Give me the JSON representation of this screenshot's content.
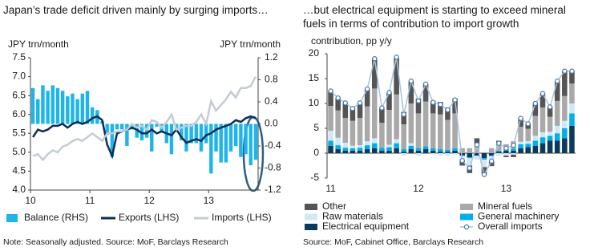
{
  "chart_data": [
    {
      "type": "combo",
      "title": "Japan’s trade deficit driven mainly by surging imports…",
      "y_label": "JPY trn/month",
      "y2_label": "JPY trn/month",
      "categories": [
        "10",
        null,
        null,
        null,
        null,
        null,
        null,
        null,
        null,
        null,
        null,
        null,
        "11",
        null,
        null,
        null,
        null,
        null,
        null,
        null,
        null,
        null,
        null,
        null,
        "12",
        null,
        null,
        null,
        null,
        null,
        null,
        null,
        null,
        null,
        null,
        null,
        "13",
        null,
        null,
        null,
        null,
        null,
        null,
        null,
        null,
        null
      ],
      "series": [
        {
          "name": "Balance (RHS)",
          "type": "bar",
          "axis": "y2",
          "color": "#1fb5ea",
          "values": [
            0.65,
            0.45,
            0.7,
            0.6,
            0.7,
            0.65,
            0.6,
            0.5,
            0.55,
            0.45,
            0.55,
            0.6,
            0.3,
            0.25,
            0.05,
            -0.2,
            -0.6,
            -0.1,
            -0.1,
            -0.4,
            -0.1,
            -0.25,
            -0.3,
            -0.25,
            -0.5,
            -0.05,
            -0.15,
            -0.35,
            -0.55,
            -0.1,
            -0.3,
            -0.5,
            -0.35,
            -0.35,
            -0.5,
            -0.35,
            -0.9,
            -0.5,
            -0.7,
            -0.7,
            -0.5,
            -0.4,
            -0.6,
            -0.55,
            -0.75,
            -0.65
          ]
        },
        {
          "name": "Exports (LHS)",
          "type": "line",
          "color": "#0d2f55",
          "values": [
            5.4,
            5.6,
            5.55,
            5.6,
            5.7,
            5.7,
            5.75,
            5.65,
            5.75,
            5.8,
            5.75,
            5.8,
            5.9,
            5.95,
            5.85,
            5.2,
            4.9,
            5.5,
            5.55,
            5.6,
            5.65,
            5.6,
            5.5,
            5.5,
            5.6,
            5.5,
            5.55,
            5.5,
            5.45,
            5.6,
            5.4,
            5.25,
            5.3,
            5.35,
            5.3,
            5.45,
            5.5,
            5.6,
            5.65,
            5.7,
            5.75,
            5.85,
            5.8,
            5.9,
            5.95,
            5.9
          ]
        },
        {
          "name": "Imports (LHS)",
          "type": "line",
          "color": "#c3ccd3",
          "values": [
            4.9,
            4.95,
            4.8,
            4.95,
            5.05,
            5.0,
            5.15,
            5.2,
            5.3,
            5.35,
            5.3,
            5.4,
            5.5,
            5.4,
            5.3,
            5.5,
            5.5,
            5.55,
            5.55,
            5.6,
            5.75,
            5.65,
            5.7,
            5.6,
            5.85,
            5.8,
            5.65,
            5.8,
            6.0,
            5.6,
            5.65,
            5.7,
            5.7,
            5.8,
            6.0,
            5.75,
            6.35,
            6.1,
            6.25,
            6.4,
            6.6,
            6.45,
            6.7,
            6.7,
            6.75,
            7.0
          ]
        }
      ],
      "ylim": [
        4.0,
        7.5
      ],
      "yticks": [
        {
          "value": 4.0,
          "label": "4.0"
        },
        {
          "value": 4.5,
          "label": "4.5"
        },
        {
          "value": 5.0,
          "label": "5.0"
        },
        {
          "value": 5.5,
          "label": "5.5"
        },
        {
          "value": 6.0,
          "label": "6.0"
        },
        {
          "value": 6.5,
          "label": "6.5"
        },
        {
          "value": 7.0,
          "label": "7.0"
        },
        {
          "value": 7.5,
          "label": "7.5"
        }
      ],
      "y2lim": [
        -1.2,
        1.2
      ],
      "y2ticks": [
        {
          "value": -1.2,
          "label": "-1.2"
        },
        {
          "value": -0.8,
          "label": "-0.8"
        },
        {
          "value": -0.4,
          "label": "-0.4"
        },
        {
          "value": 0,
          "label": "0.0"
        },
        {
          "value": 0.4,
          "label": "0.4"
        },
        {
          "value": 0.8,
          "label": "0.8"
        },
        {
          "value": 1.2,
          "label": "1.2"
        }
      ],
      "grid": false,
      "note": "Note: Seasonally adjusted. Source: MoF, Barclays Research"
    },
    {
      "type": "stacked_bar",
      "title": "…but electrical equipment is starting to exceed mineral fuels in terms of contribution to import growth",
      "y_label": "contribution, pp y/y",
      "categories": [
        "11",
        null,
        null,
        null,
        null,
        null,
        null,
        null,
        null,
        null,
        null,
        null,
        "12",
        null,
        null,
        null,
        null,
        null,
        null,
        null,
        null,
        null,
        null,
        null,
        "13",
        null,
        null,
        null,
        null,
        null,
        null,
        null,
        null,
        null
      ],
      "series": [
        {
          "name": "Electrical equipment",
          "type": "bar",
          "color": "#0b3a5c",
          "values": [
            1.5,
            0.8,
            0.5,
            0.5,
            0.5,
            0.8,
            1,
            0.5,
            0.5,
            1,
            0.3,
            0.8,
            0.5,
            0.8,
            0.5,
            0.3,
            0.3,
            0.5,
            -0.5,
            -0.8,
            -0.5,
            -1,
            -0.5,
            0.3,
            0.5,
            0.5,
            1,
            1.2,
            1.5,
            2,
            2.5,
            2.5,
            3,
            5.5
          ]
        },
        {
          "name": "General machinery",
          "type": "bar",
          "color": "#00aeef",
          "values": [
            1,
            0.8,
            0.6,
            0.5,
            0.6,
            0.8,
            1,
            0.6,
            0.7,
            1,
            0.5,
            0.7,
            0.5,
            0.6,
            0.5,
            0.5,
            0.4,
            0.5,
            0,
            -0.2,
            0,
            -0.3,
            -0.1,
            0.2,
            0.3,
            0.4,
            0.8,
            0.7,
            1,
            1.2,
            1,
            1.5,
            2,
            2.5
          ]
        },
        {
          "name": "Raw materials",
          "type": "bar",
          "color": "#cfe9f7",
          "values": [
            2,
            1.5,
            1,
            0.5,
            0.5,
            0.8,
            1,
            0,
            0.5,
            0.8,
            -0.5,
            0.5,
            -0.5,
            0,
            -0.3,
            -0.5,
            -0.5,
            -0.3,
            -1,
            -1.5,
            -0.8,
            -1.5,
            -1,
            -0.5,
            -0.5,
            -0.3,
            0.5,
            0.5,
            1,
            1,
            0.8,
            1.5,
            1.5,
            2
          ]
        },
        {
          "name": "Mineral fuels",
          "type": "bar",
          "color": "#a9a9a9",
          "values": [
            5,
            5.5,
            5,
            5,
            5.5,
            7,
            10,
            5,
            7,
            9,
            5,
            8,
            7,
            9,
            7,
            7,
            6,
            7,
            1,
            1,
            2,
            0,
            1,
            1.5,
            1,
            1.5,
            3,
            2.5,
            4,
            5,
            3,
            5,
            5,
            4
          ]
        },
        {
          "name": "Other",
          "type": "bar",
          "color": "#555555",
          "values": [
            3,
            2.5,
            3,
            2.5,
            3,
            3.5,
            6,
            3,
            3.5,
            7.5,
            2.5,
            4.5,
            3,
            3.5,
            2.5,
            2.5,
            2.5,
            3,
            -1,
            -1.5,
            1,
            -1.5,
            -1,
            0.5,
            -0.3,
            -0.5,
            1.7,
            1,
            2.5,
            2.8,
            2,
            4,
            5,
            2.5
          ]
        },
        {
          "name": "Overall imports",
          "type": "line",
          "color": "#a8c4e0",
          "values": [
            12.5,
            11.1,
            10.1,
            9,
            10.1,
            12.9,
            19,
            9.1,
            12.2,
            19.3,
            7.8,
            14.5,
            10.5,
            13.9,
            10.2,
            9.8,
            8.7,
            10.7,
            -1.5,
            -3,
            1.7,
            -4.3,
            -1.6,
            2,
            1,
            1.6,
            7,
            5.9,
            10,
            12,
            9.3,
            14.5,
            16.5,
            16.5
          ]
        }
      ],
      "ylim": [
        -5,
        20
      ],
      "yticks": [
        -5,
        0,
        5,
        10,
        15,
        20
      ],
      "grid": false,
      "note": "Source: MoF, Cabinet Office, Barclays Research"
    }
  ]
}
